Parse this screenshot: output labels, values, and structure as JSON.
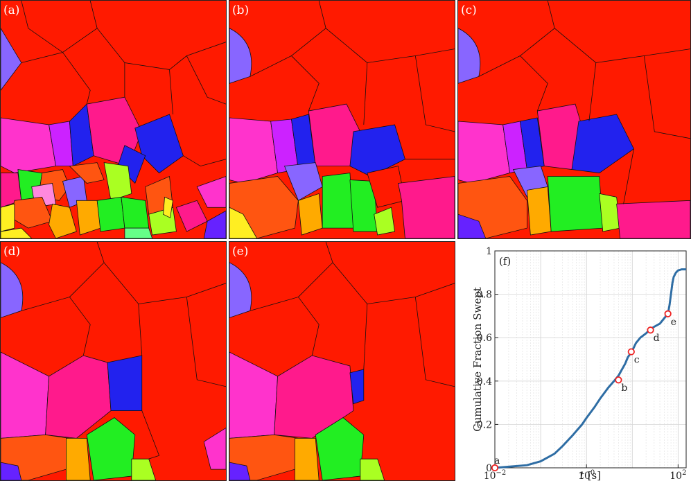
{
  "figure": {
    "panels": [
      {
        "id": "a",
        "label": "(a)"
      },
      {
        "id": "b",
        "label": "(b)"
      },
      {
        "id": "c",
        "label": "(c)"
      },
      {
        "id": "d",
        "label": "(d)"
      },
      {
        "id": "e",
        "label": "(e)"
      }
    ],
    "colors": {
      "red": "#ff1a00",
      "magenta": "#ff33cc",
      "pink": "#ff1a8c",
      "violet": "#cc22ff",
      "blue": "#2222ee",
      "lavender": "#8866ff",
      "green": "#22ee22",
      "lime": "#aaff22",
      "orange": "#ff5511",
      "amber": "#ffaa00",
      "yellow": "#ffee22",
      "purple": "#6622ff",
      "line": "#2e6da4"
    }
  },
  "chart_data": {
    "type": "line",
    "panel_label": "(f)",
    "xlabel": "t [s]",
    "ylabel": "Cumulative Fraction Swept",
    "xscale": "log",
    "xlim": [
      0.01,
      150
    ],
    "ylim": [
      0,
      1
    ],
    "x_ticks": [
      {
        "value": 0.01,
        "base": "10",
        "exp": "−2"
      },
      {
        "value": 1,
        "base": "10",
        "exp": "0"
      },
      {
        "value": 100,
        "base": "10",
        "exp": "2"
      }
    ],
    "y_ticks": [
      {
        "value": 0,
        "label": "0"
      },
      {
        "value": 0.2,
        "label": "0.2"
      },
      {
        "value": 0.4,
        "label": "0.4"
      },
      {
        "value": 0.6,
        "label": "0.6"
      },
      {
        "value": 0.8,
        "label": "0.8"
      },
      {
        "value": 1,
        "label": "1"
      }
    ],
    "grid": true,
    "series": [
      {
        "name": "cumulative fraction swept",
        "x": [
          0.01,
          0.02,
          0.05,
          0.1,
          0.2,
          0.3,
          0.5,
          0.8,
          1.0,
          1.5,
          2.0,
          3.0,
          4.0,
          5.0,
          6.0,
          7.0,
          8.0,
          9.0,
          10.0,
          12.0,
          15.0,
          20.0,
          25.0,
          30.0,
          40.0,
          50.0,
          60.0,
          65.0,
          70.0,
          75.0,
          80.0,
          90.0,
          100.0,
          120.0,
          150.0
        ],
        "y": [
          0.0,
          0.005,
          0.012,
          0.03,
          0.065,
          0.1,
          0.15,
          0.2,
          0.23,
          0.28,
          0.32,
          0.37,
          0.4,
          0.425,
          0.455,
          0.48,
          0.51,
          0.525,
          0.54,
          0.575,
          0.6,
          0.62,
          0.64,
          0.65,
          0.665,
          0.69,
          0.71,
          0.75,
          0.8,
          0.85,
          0.88,
          0.9,
          0.91,
          0.915,
          0.915
        ]
      }
    ],
    "markers": [
      {
        "label": "a",
        "x": 0.01,
        "y": 0.0
      },
      {
        "label": "b",
        "x": 5.0,
        "y": 0.405
      },
      {
        "label": "c",
        "x": 9.5,
        "y": 0.535
      },
      {
        "label": "d",
        "x": 25.0,
        "y": 0.635
      },
      {
        "label": "e",
        "x": 60.0,
        "y": 0.71
      }
    ]
  }
}
